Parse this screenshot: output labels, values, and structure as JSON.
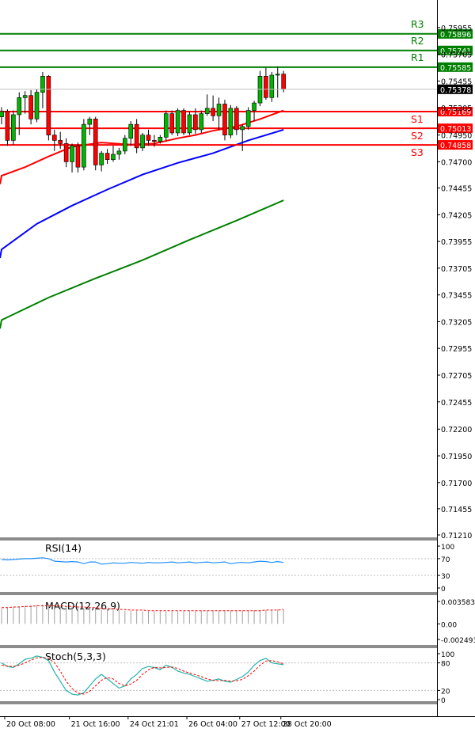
{
  "chart_data": {
    "type": "candlestick",
    "price_axis": {
      "ticks": [
        "0.75955",
        "0.75705",
        "0.75455",
        "0.75205",
        "0.74950",
        "0.74700",
        "0.74455",
        "0.74205",
        "0.73955",
        "0.73705",
        "0.73455",
        "0.73205",
        "0.72955",
        "0.72705",
        "0.72455",
        "0.72200",
        "0.71950",
        "0.71700",
        "0.71455",
        "0.71210"
      ],
      "ylim": [
        0.7121,
        0.7605
      ]
    },
    "current_price": "0.75378",
    "levels": [
      {
        "name": "R3",
        "value": "0.75896",
        "color": "#008000"
      },
      {
        "name": "R2",
        "value": "0.75741",
        "color": "#008000"
      },
      {
        "name": "R1",
        "value": "0.75585",
        "color": "#008000"
      },
      {
        "name": "S1",
        "value": "0.75169",
        "color": "#ff0000"
      },
      {
        "name": "S2",
        "value": "0.75013",
        "color": "#ff0000"
      },
      {
        "name": "S3",
        "value": "0.74858",
        "color": "#ff0000"
      }
    ],
    "candles": [
      [
        0.7512,
        0.7521,
        0.7505,
        0.7517
      ],
      [
        0.7517,
        0.7519,
        0.7485,
        0.749
      ],
      [
        0.749,
        0.7518,
        0.7486,
        0.7514
      ],
      [
        0.7514,
        0.7535,
        0.7495,
        0.753
      ],
      [
        0.753,
        0.7536,
        0.7515,
        0.7532
      ],
      [
        0.7532,
        0.7537,
        0.7505,
        0.751
      ],
      [
        0.751,
        0.7538,
        0.7507,
        0.7535
      ],
      [
        0.7535,
        0.7554,
        0.752,
        0.755
      ],
      [
        0.755,
        0.7551,
        0.749,
        0.7495
      ],
      [
        0.7495,
        0.75,
        0.748,
        0.749
      ],
      [
        0.749,
        0.7498,
        0.7482,
        0.7487
      ],
      [
        0.7487,
        0.7492,
        0.7465,
        0.747
      ],
      [
        0.747,
        0.7487,
        0.746,
        0.7485
      ],
      [
        0.7485,
        0.7488,
        0.746,
        0.7465
      ],
      [
        0.7465,
        0.751,
        0.7462,
        0.7505
      ],
      [
        0.7505,
        0.7512,
        0.7495,
        0.751
      ],
      [
        0.751,
        0.7512,
        0.7462,
        0.7467
      ],
      [
        0.7467,
        0.748,
        0.7461,
        0.7478
      ],
      [
        0.7478,
        0.7482,
        0.7468,
        0.7472
      ],
      [
        0.7472,
        0.7485,
        0.747,
        0.7477
      ],
      [
        0.7477,
        0.7483,
        0.7472,
        0.748
      ],
      [
        0.748,
        0.7495,
        0.7477,
        0.7492
      ],
      [
        0.7492,
        0.7508,
        0.7485,
        0.7505
      ],
      [
        0.7505,
        0.751,
        0.7478,
        0.7483
      ],
      [
        0.7483,
        0.7497,
        0.748,
        0.7495
      ],
      [
        0.7495,
        0.75,
        0.7485,
        0.749
      ],
      [
        0.749,
        0.7495,
        0.7484,
        0.7489
      ],
      [
        0.7489,
        0.7495,
        0.7487,
        0.7493
      ],
      [
        0.7493,
        0.7518,
        0.749,
        0.7515
      ],
      [
        0.7515,
        0.7518,
        0.7495,
        0.7497
      ],
      [
        0.7497,
        0.752,
        0.7494,
        0.7518
      ],
      [
        0.7518,
        0.752,
        0.7495,
        0.7497
      ],
      [
        0.7497,
        0.7517,
        0.7495,
        0.7514
      ],
      [
        0.7514,
        0.752,
        0.7496,
        0.75
      ],
      [
        0.75,
        0.7518,
        0.7497,
        0.7515
      ],
      [
        0.7515,
        0.7533,
        0.7513,
        0.752
      ],
      [
        0.752,
        0.7532,
        0.7508,
        0.7513
      ],
      [
        0.7513,
        0.753,
        0.75,
        0.7524
      ],
      [
        0.7524,
        0.7528,
        0.749,
        0.7495
      ],
      [
        0.7495,
        0.7523,
        0.7492,
        0.752
      ],
      [
        0.752,
        0.7522,
        0.7495,
        0.75
      ],
      [
        0.75,
        0.7505,
        0.748,
        0.7503
      ],
      [
        0.7503,
        0.7521,
        0.75,
        0.7518
      ],
      [
        0.7518,
        0.7527,
        0.7508,
        0.7525
      ],
      [
        0.7525,
        0.7555,
        0.7522,
        0.755
      ],
      [
        0.755,
        0.7558,
        0.7528,
        0.753
      ],
      [
        0.753,
        0.7554,
        0.7526,
        0.7551
      ],
      [
        0.7551,
        0.7559,
        0.753,
        0.7552
      ],
      [
        0.7552,
        0.7555,
        0.7535,
        0.7538
      ]
    ],
    "moving_averages": [
      {
        "color": "#ff0000",
        "values": [
          [
            0,
            0.7457
          ],
          [
            4,
            0.7465
          ],
          [
            8,
            0.7475
          ],
          [
            12,
            0.7484
          ],
          [
            17,
            0.7488
          ],
          [
            22,
            0.7486
          ],
          [
            26,
            0.7487
          ],
          [
            30,
            0.7492
          ],
          [
            33,
            0.7495
          ],
          [
            36,
            0.7499
          ],
          [
            40,
            0.7503
          ],
          [
            44,
            0.751
          ],
          [
            48,
            0.7518
          ]
        ]
      },
      {
        "color": "#0000ff",
        "values": [
          [
            0,
            0.7388
          ],
          [
            6,
            0.7412
          ],
          [
            12,
            0.7429
          ],
          [
            18,
            0.7444
          ],
          [
            24,
            0.7458
          ],
          [
            30,
            0.7469
          ],
          [
            36,
            0.7478
          ],
          [
            42,
            0.749
          ],
          [
            48,
            0.75
          ]
        ]
      },
      {
        "color": "#008000",
        "values": [
          [
            0,
            0.7322
          ],
          [
            8,
            0.7343
          ],
          [
            16,
            0.7361
          ],
          [
            24,
            0.7378
          ],
          [
            32,
            0.7397
          ],
          [
            40,
            0.7415
          ],
          [
            48,
            0.7434
          ]
        ]
      }
    ],
    "rsi": {
      "label": "RSI(14)",
      "ticks": [
        "100",
        "70",
        "30",
        "0"
      ],
      "values": [
        68,
        67,
        68,
        69,
        70,
        70,
        71,
        72,
        70,
        64,
        63,
        62,
        63,
        62,
        58,
        62,
        62,
        57,
        58,
        60,
        59,
        59,
        61,
        60,
        59,
        61,
        60,
        60,
        61,
        62,
        60,
        61,
        62,
        60,
        61,
        62,
        60,
        61,
        62,
        58,
        60,
        61,
        60,
        62,
        64,
        63,
        61,
        63,
        61
      ]
    },
    "macd": {
      "label": "MACD(12,26,9)",
      "ticks": [
        "0.003583",
        "0.00",
        "-0.002493"
      ],
      "histogram": [
        0.0025,
        0.0026,
        0.0027,
        0.0028,
        0.0029,
        0.003,
        0.003,
        0.0031,
        0.003,
        0.0029,
        0.0028,
        0.0028,
        0.0027,
        0.0026,
        0.0025,
        0.0025,
        0.0024,
        0.0023,
        0.0023,
        0.0022,
        0.0022,
        0.0021,
        0.0021,
        0.0021,
        0.002,
        0.002,
        0.002,
        0.002,
        0.002,
        0.002,
        0.002,
        0.002,
        0.0021,
        0.002,
        0.0021,
        0.0021,
        0.0021,
        0.0021,
        0.0021,
        0.0021,
        0.0021,
        0.0021,
        0.0021,
        0.0022,
        0.0022,
        0.0022,
        0.0022,
        0.0023,
        0.0023
      ],
      "signal": [
        0.0026,
        0.0026,
        0.0027,
        0.0027,
        0.0028,
        0.0028,
        0.0029,
        0.0029,
        0.0029,
        0.0029,
        0.0029,
        0.0028,
        0.0028,
        0.0027,
        0.0027,
        0.0026,
        0.0026,
        0.0025,
        0.0024,
        0.0024,
        0.0023,
        0.0023,
        0.0022,
        0.0022,
        0.0022,
        0.0021,
        0.0021,
        0.0021,
        0.0021,
        0.0021,
        0.0021,
        0.0021,
        0.0021,
        0.0021,
        0.0021,
        0.0021,
        0.0021,
        0.0021,
        0.0021,
        0.0021,
        0.0021,
        0.0021,
        0.0021,
        0.0021,
        0.0021,
        0.0022,
        0.0022,
        0.0022,
        0.0023
      ]
    },
    "stoch": {
      "label": "Stoch(5,3,3)",
      "ticks": [
        "100",
        "80",
        "20",
        "0"
      ],
      "k": [
        80,
        72,
        70,
        78,
        88,
        90,
        95,
        92,
        85,
        60,
        40,
        20,
        12,
        10,
        15,
        30,
        45,
        55,
        45,
        35,
        25,
        30,
        45,
        55,
        68,
        72,
        70,
        65,
        75,
        70,
        62,
        58,
        55,
        50,
        45,
        40,
        42,
        45,
        40,
        38,
        44,
        50,
        60,
        75,
        85,
        90,
        80,
        78,
        76
      ],
      "d": [
        75,
        73,
        72,
        75,
        80,
        86,
        91,
        92,
        90,
        80,
        62,
        40,
        24,
        14,
        12,
        18,
        30,
        42,
        48,
        45,
        35,
        30,
        34,
        42,
        55,
        65,
        70,
        69,
        70,
        71,
        68,
        62,
        58,
        54,
        50,
        45,
        42,
        41,
        42,
        40,
        41,
        44,
        52,
        62,
        75,
        84,
        85,
        82,
        78
      ]
    },
    "time_axis": {
      "labels": [
        {
          "text": "20 Oct 08:00",
          "index": 0
        },
        {
          "text": "21 Oct 16:00",
          "index": 11
        },
        {
          "text": "24 Oct 21:01",
          "index": 21
        },
        {
          "text": "26 Oct 04:00",
          "index": 31
        },
        {
          "text": "27 Oct 12:00",
          "index": 40
        },
        {
          "text": "28 Oct 20:00",
          "index": 47
        }
      ]
    }
  }
}
